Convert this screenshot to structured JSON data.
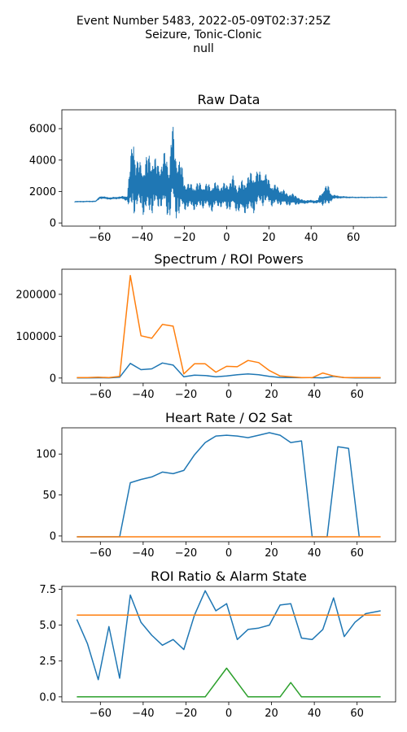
{
  "suptitle": {
    "line1": "Event Number 5483, 2022-05-09T02:37:25Z",
    "line2": "Seizure, Tonic-Clonic",
    "line3": "null"
  },
  "colors": {
    "blue": "#1f77b4",
    "orange": "#ff7f0e",
    "green": "#2ca02c"
  },
  "chart_data": [
    {
      "type": "line",
      "title": "Raw Data",
      "xlabel": "",
      "ylabel": "",
      "xlim": [
        -78,
        80
      ],
      "ylim": [
        -200,
        7200
      ],
      "xticks": [
        -60,
        -40,
        -20,
        0,
        20,
        40,
        60
      ],
      "yticks": [
        0,
        2000,
        4000,
        6000
      ],
      "grid": false,
      "series": [
        {
          "color": "#1f77b4",
          "style": "dense-signal",
          "x": [
            -72,
            -62,
            -60,
            -55,
            -50,
            -47,
            -46,
            -44,
            -43,
            -41,
            -39,
            -37,
            -35,
            -33,
            -31,
            -29,
            -27,
            -26,
            -24,
            -22,
            -20,
            -17,
            -15,
            -12,
            -10,
            -7,
            -5,
            -3,
            0,
            3,
            5,
            8,
            10,
            12,
            14,
            16,
            18,
            20,
            22,
            24,
            26,
            28,
            30,
            33,
            35,
            38,
            40,
            43,
            46,
            48,
            50,
            52,
            54,
            56,
            60,
            65,
            70,
            76
          ],
          "hi": [
            1380,
            1400,
            1700,
            1620,
            1680,
            1750,
            3500,
            6300,
            4100,
            4000,
            3900,
            4600,
            4400,
            4000,
            4000,
            4700,
            3900,
            6800,
            4700,
            4200,
            2800,
            2500,
            2600,
            2600,
            2500,
            2600,
            2600,
            2500,
            2600,
            3000,
            2500,
            2800,
            3100,
            3300,
            3400,
            3300,
            3300,
            2800,
            2500,
            2400,
            2200,
            2000,
            1900,
            1800,
            1500,
            1450,
            1450,
            1450,
            2300,
            2450,
            1800,
            1750,
            1700,
            1680,
            1650,
            1650,
            1650,
            1650
          ],
          "lo": [
            1330,
            1350,
            1550,
            1500,
            1550,
            1400,
            600,
            500,
            700,
            900,
            400,
            400,
            600,
            700,
            1000,
            350,
            300,
            500,
            200,
            400,
            800,
            900,
            800,
            900,
            1000,
            700,
            900,
            1000,
            800,
            800,
            700,
            500,
            700,
            400,
            900,
            1100,
            1100,
            1200,
            1000,
            1100,
            1150,
            1100,
            1100,
            1150,
            1200,
            1250,
            1280,
            1250,
            1100,
            1000,
            1500,
            1550,
            1580,
            1590,
            1600,
            1600,
            1610,
            1610
          ]
        }
      ]
    },
    {
      "type": "line",
      "title": "Spectrum / ROI Powers",
      "xlabel": "",
      "ylabel": "",
      "xlim": [
        -78,
        78
      ],
      "ylim": [
        -12000,
        260000
      ],
      "xticks": [
        -60,
        -40,
        -20,
        0,
        20,
        40,
        60
      ],
      "yticks": [
        0,
        100000,
        200000
      ],
      "grid": false,
      "series": [
        {
          "color": "#1f77b4",
          "x": [
            -71,
            -66,
            -61,
            -56,
            -51,
            -46,
            -41,
            -36,
            -31,
            -26,
            -21,
            -16,
            -11,
            -6,
            -1,
            4,
            9,
            14,
            19,
            24,
            29,
            34,
            39,
            44,
            49,
            54,
            59,
            64,
            71
          ],
          "y": [
            500,
            500,
            700,
            500,
            2000,
            35000,
            20000,
            22000,
            36000,
            31000,
            3000,
            7000,
            6000,
            3000,
            5000,
            8000,
            10000,
            8000,
            4000,
            1500,
            1000,
            800,
            1000,
            500,
            4000,
            1000,
            500,
            500,
            500
          ]
        },
        {
          "color": "#ff7f0e",
          "x": [
            -71,
            -66,
            -61,
            -56,
            -51,
            -46,
            -41,
            -36,
            -31,
            -26,
            -21,
            -16,
            -11,
            -6,
            -1,
            4,
            9,
            14,
            19,
            24,
            29,
            34,
            39,
            44,
            49,
            54,
            59,
            64,
            71
          ],
          "y": [
            1000,
            1000,
            2000,
            1000,
            4000,
            245000,
            101000,
            95000,
            128000,
            124000,
            10000,
            34000,
            34000,
            14000,
            28000,
            27000,
            42000,
            37000,
            18000,
            5000,
            3000,
            1000,
            1000,
            12000,
            5000,
            1000,
            1000,
            1000,
            1000
          ]
        }
      ]
    },
    {
      "type": "line",
      "title": "Heart Rate / O2 Sat",
      "xlabel": "",
      "ylabel": "",
      "xlim": [
        -78,
        78
      ],
      "ylim": [
        -7,
        132
      ],
      "xticks": [
        -60,
        -40,
        -20,
        0,
        20,
        40,
        60
      ],
      "yticks": [
        0,
        50,
        100
      ],
      "grid": false,
      "series": [
        {
          "color": "#1f77b4",
          "x": [
            -71,
            -61,
            -51,
            -46,
            -41,
            -36,
            -31,
            -26,
            -21,
            -16,
            -11,
            -6,
            -1,
            4,
            9,
            14,
            19,
            24,
            29,
            34,
            39,
            46,
            51,
            56,
            61
          ],
          "y": [
            -1,
            -1,
            -1,
            65,
            69,
            72,
            78,
            76,
            80,
            99,
            114,
            122,
            123,
            122,
            120,
            123,
            126,
            123,
            114,
            116,
            -1,
            -1,
            109,
            107,
            -1
          ]
        },
        {
          "color": "#ff7f0e",
          "x": [
            -71,
            71
          ],
          "y": [
            -1,
            -1
          ]
        }
      ]
    },
    {
      "type": "line",
      "title": "ROI Ratio & Alarm State",
      "xlabel": "",
      "ylabel": "",
      "xlim": [
        -78,
        78
      ],
      "ylim": [
        -0.35,
        7.7
      ],
      "xticks": [
        -60,
        -40,
        -20,
        0,
        20,
        40,
        60
      ],
      "yticks": [
        0.0,
        2.5,
        5.0,
        7.5
      ],
      "ytick_labels": [
        "0.0",
        "2.5",
        "5.0",
        "7.5"
      ],
      "grid": false,
      "series": [
        {
          "color": "#1f77b4",
          "x": [
            -71,
            -66,
            -61,
            -56,
            -51,
            -46,
            -41,
            -36,
            -31,
            -26,
            -21,
            -16,
            -11,
            -6,
            -1,
            4,
            9,
            14,
            19,
            24,
            29,
            34,
            39,
            44,
            49,
            54,
            59,
            64,
            71
          ],
          "y": [
            5.4,
            3.7,
            1.2,
            4.9,
            1.3,
            7.1,
            5.2,
            4.3,
            3.6,
            4.0,
            3.3,
            5.7,
            7.4,
            6.0,
            6.5,
            4.0,
            4.7,
            4.8,
            5.0,
            6.4,
            6.5,
            4.1,
            4.0,
            4.7,
            6.9,
            4.2,
            5.2,
            5.8,
            6.0
          ]
        },
        {
          "color": "#ff7f0e",
          "x": [
            -71,
            71
          ],
          "y": [
            5.7,
            5.7
          ]
        },
        {
          "color": "#2ca02c",
          "x": [
            -71,
            -11,
            -1,
            9,
            24,
            29,
            34,
            71
          ],
          "y": [
            0,
            0,
            2,
            0,
            0,
            1,
            0,
            0
          ]
        }
      ]
    }
  ]
}
